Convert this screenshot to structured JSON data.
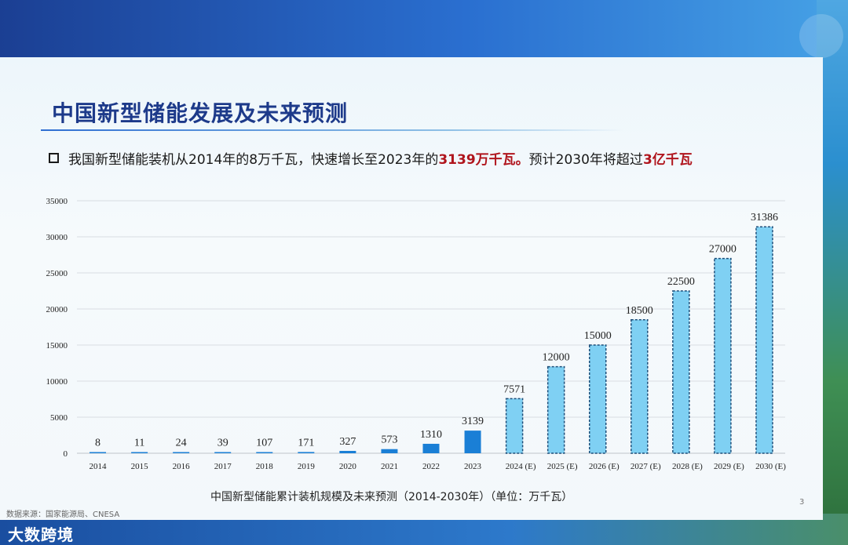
{
  "slide": {
    "title": "中国新型储能发展及未来预测",
    "bullet": {
      "part1": "我国新型储能装机从2014年的8万千瓦，快速增长至2023年的",
      "hl1": "3139万千瓦。",
      "part2": "预计2030年将超过",
      "hl2": "3亿千瓦"
    },
    "caption": "中国新型储能累计装机规模及未来预测（2014-2030年）（单位：万千瓦）",
    "source": "数据来源：国家能源局、CNESA",
    "page_number": "3"
  },
  "watermark": "大数跨境",
  "chart_data": {
    "type": "bar",
    "title": "中国新型储能累计装机规模及未来预测（2014-2030年）（单位：万千瓦）",
    "categories": [
      "2014",
      "2015",
      "2016",
      "2017",
      "2018",
      "2019",
      "2020",
      "2021",
      "2022",
      "2023",
      "2024 (E)",
      "2025 (E)",
      "2026 (E)",
      "2027 (E)",
      "2028 (E)",
      "2029 (E)",
      "2030 (E)"
    ],
    "values": [
      8,
      11,
      24,
      39,
      107,
      171,
      327,
      573,
      1310,
      3139,
      7571,
      12000,
      15000,
      18500,
      22500,
      27000,
      31386
    ],
    "data_labels": [
      "8",
      "11",
      "24",
      "39",
      "107",
      "171",
      "327",
      "573",
      "1310",
      "3139",
      "7571",
      "12000",
      "15000",
      "18500",
      "22500",
      "27000",
      "31386"
    ],
    "estimated": [
      false,
      false,
      false,
      false,
      false,
      false,
      false,
      false,
      false,
      false,
      true,
      true,
      true,
      true,
      true,
      true,
      true
    ],
    "yticks": [
      0,
      5000,
      10000,
      15000,
      20000,
      25000,
      30000,
      35000
    ],
    "ylim": [
      0,
      35000
    ],
    "xlabel": "",
    "ylabel": "",
    "grid": true,
    "colors": {
      "actual": "#1a7fd6",
      "estimated_fill": "#7fd0f3",
      "estimated_border": "#1f4f7a",
      "grid": "#d9dde2",
      "axis_text": "#222222"
    }
  }
}
